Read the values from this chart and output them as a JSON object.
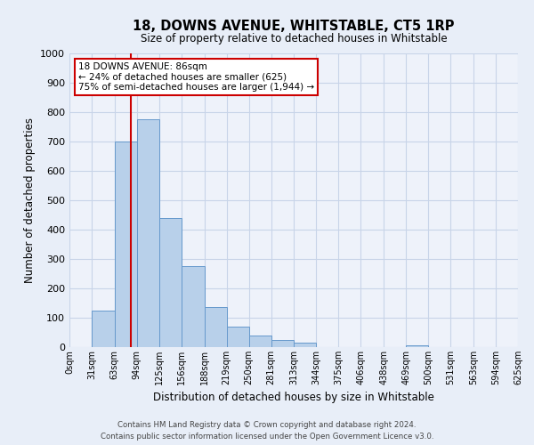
{
  "title": "18, DOWNS AVENUE, WHITSTABLE, CT5 1RP",
  "subtitle": "Size of property relative to detached houses in Whitstable",
  "xlabel": "Distribution of detached houses by size in Whitstable",
  "ylabel": "Number of detached properties",
  "bin_labels": [
    "0sqm",
    "31sqm",
    "63sqm",
    "94sqm",
    "125sqm",
    "156sqm",
    "188sqm",
    "219sqm",
    "250sqm",
    "281sqm",
    "313sqm",
    "344sqm",
    "375sqm",
    "406sqm",
    "438sqm",
    "469sqm",
    "500sqm",
    "531sqm",
    "563sqm",
    "594sqm",
    "625sqm"
  ],
  "bar_values": [
    0,
    125,
    700,
    775,
    440,
    275,
    135,
    70,
    40,
    25,
    15,
    0,
    0,
    0,
    0,
    5,
    0,
    0,
    0,
    0
  ],
  "bar_color": "#b8d0ea",
  "bar_edge_color": "#6699cc",
  "property_line_x": 86,
  "property_line_label": "18 DOWNS AVENUE: 86sqm",
  "annotation_line1": "← 24% of detached houses are smaller (625)",
  "annotation_line2": "75% of semi-detached houses are larger (1,944) →",
  "vline_color": "#cc0000",
  "ylim": [
    0,
    1000
  ],
  "yticks": [
    0,
    100,
    200,
    300,
    400,
    500,
    600,
    700,
    800,
    900,
    1000
  ],
  "grid_color": "#c8d4e8",
  "bg_color": "#e8eef8",
  "plot_bg_color": "#eef2fa",
  "footer_line1": "Contains HM Land Registry data © Crown copyright and database right 2024.",
  "footer_line2": "Contains public sector information licensed under the Open Government Licence v3.0."
}
